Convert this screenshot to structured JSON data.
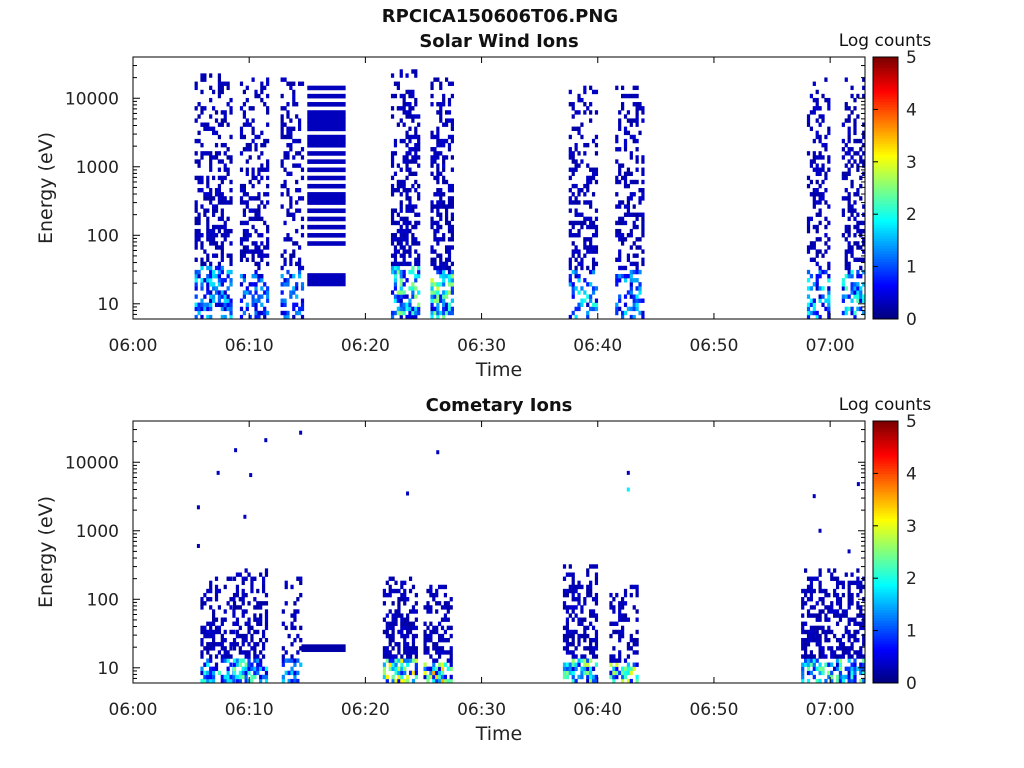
{
  "figure_title": "RPCICA150606T06.PNG",
  "colors": {
    "low": "#00008f",
    "mid": "#00c8ff",
    "high": "#ffea00",
    "max": "#800000"
  },
  "chart_data": [
    {
      "type": "heatmap",
      "title": "Solar Wind Ions",
      "xlabel": "Time",
      "ylabel": "Energy (eV)",
      "x_ticks": [
        "06:00",
        "06:10",
        "06:20",
        "06:30",
        "06:40",
        "06:50",
        "07:00"
      ],
      "x_range_minutes": [
        0,
        63
      ],
      "y_ticks": [
        "10",
        "100",
        "1000",
        "10000"
      ],
      "y_scale": "log",
      "y_range_eV": [
        6,
        40000
      ],
      "colorbar": {
        "label": "Log counts",
        "ticks": [
          "0",
          "1",
          "2",
          "3",
          "4",
          "5"
        ],
        "range": [
          0,
          5
        ]
      },
      "bursts": [
        {
          "t_start": 5.3,
          "t_end": 8.5,
          "e_min": 6,
          "e_max": 25000,
          "intensity": 0.7,
          "peak": 1.6
        },
        {
          "t_start": 9.2,
          "t_end": 11.7,
          "e_min": 6,
          "e_max": 20000,
          "intensity": 0.6,
          "peak": 1.2
        },
        {
          "t_start": 12.7,
          "t_end": 14.5,
          "e_min": 6,
          "e_max": 20000,
          "intensity": 0.6,
          "peak": 1.3
        },
        {
          "t_start": 22.2,
          "t_end": 24.5,
          "e_min": 6,
          "e_max": 25000,
          "intensity": 0.8,
          "peak": 2.3
        },
        {
          "t_start": 25.6,
          "t_end": 27.6,
          "e_min": 6,
          "e_max": 18000,
          "intensity": 0.8,
          "peak": 2.6
        },
        {
          "t_start": 37.5,
          "t_end": 40.0,
          "e_min": 6,
          "e_max": 15000,
          "intensity": 0.6,
          "peak": 1.8
        },
        {
          "t_start": 41.5,
          "t_end": 43.8,
          "e_min": 6,
          "e_max": 15000,
          "intensity": 0.6,
          "peak": 1.5
        },
        {
          "t_start": 58.0,
          "t_end": 60.0,
          "e_min": 6,
          "e_max": 18000,
          "intensity": 0.6,
          "peak": 1.7
        },
        {
          "t_start": 61.0,
          "t_end": 63.0,
          "e_min": 6,
          "e_max": 18000,
          "intensity": 0.6,
          "peak": 2.0
        }
      ],
      "bands": [
        {
          "t_start": 15.0,
          "t_end": 18.3,
          "e_min": 70,
          "e_max": 14000,
          "value": 0.3
        },
        {
          "t_start": 15.0,
          "t_end": 18.3,
          "e_min": 18,
          "e_max": 28,
          "value": 0.3
        }
      ]
    },
    {
      "type": "heatmap",
      "title": "Cometary Ions",
      "xlabel": "Time",
      "ylabel": "Energy (eV)",
      "x_ticks": [
        "06:00",
        "06:10",
        "06:20",
        "06:30",
        "06:40",
        "06:50",
        "07:00"
      ],
      "x_range_minutes": [
        0,
        63
      ],
      "y_ticks": [
        "10",
        "100",
        "1000",
        "10000"
      ],
      "y_scale": "log",
      "y_range_eV": [
        6,
        40000
      ],
      "colorbar": {
        "label": "Log counts",
        "ticks": [
          "0",
          "1",
          "2",
          "3",
          "4",
          "5"
        ],
        "range": [
          0,
          5
        ]
      },
      "bursts": [
        {
          "t_start": 5.8,
          "t_end": 8.6,
          "e_min": 6,
          "e_max": 200,
          "intensity": 0.75,
          "peak": 1.9
        },
        {
          "t_start": 8.6,
          "t_end": 11.6,
          "e_min": 6,
          "e_max": 250,
          "intensity": 0.85,
          "peak": 2.2
        },
        {
          "t_start": 12.8,
          "t_end": 14.5,
          "e_min": 6,
          "e_max": 200,
          "intensity": 0.6,
          "peak": 1.4
        },
        {
          "t_start": 21.5,
          "t_end": 24.5,
          "e_min": 6,
          "e_max": 200,
          "intensity": 0.9,
          "peak": 3.0
        },
        {
          "t_start": 25.0,
          "t_end": 27.5,
          "e_min": 6,
          "e_max": 150,
          "intensity": 0.9,
          "peak": 3.3
        },
        {
          "t_start": 37.0,
          "t_end": 39.8,
          "e_min": 6,
          "e_max": 300,
          "intensity": 0.85,
          "peak": 2.6
        },
        {
          "t_start": 41.0,
          "t_end": 43.5,
          "e_min": 6,
          "e_max": 150,
          "intensity": 0.7,
          "peak": 2.8
        },
        {
          "t_start": 57.5,
          "t_end": 60.0,
          "e_min": 6,
          "e_max": 250,
          "intensity": 0.85,
          "peak": 2.3
        },
        {
          "t_start": 60.0,
          "t_end": 63.0,
          "e_min": 6,
          "e_max": 250,
          "intensity": 0.85,
          "peak": 2.4
        }
      ],
      "bands": [
        {
          "t_start": 14.5,
          "t_end": 18.3,
          "e_min": 17,
          "e_max": 22,
          "value": 0.2
        }
      ],
      "sparse_points": [
        {
          "t": 5.5,
          "e": 2200,
          "value": 0.3
        },
        {
          "t": 5.5,
          "e": 600,
          "value": 0.3
        },
        {
          "t": 7.2,
          "e": 7000,
          "value": 0.3
        },
        {
          "t": 8.7,
          "e": 15000,
          "value": 0.3
        },
        {
          "t": 9.5,
          "e": 1600,
          "value": 0.3
        },
        {
          "t": 10.0,
          "e": 6500,
          "value": 0.3
        },
        {
          "t": 11.3,
          "e": 21000,
          "value": 0.3
        },
        {
          "t": 14.3,
          "e": 27000,
          "value": 0.3
        },
        {
          "t": 26.1,
          "e": 14000,
          "value": 0.3
        },
        {
          "t": 23.5,
          "e": 3500,
          "value": 0.3
        },
        {
          "t": 42.5,
          "e": 7000,
          "value": 0.3
        },
        {
          "t": 42.5,
          "e": 4000,
          "value": 1.8
        },
        {
          "t": 58.5,
          "e": 3200,
          "value": 0.3
        },
        {
          "t": 62.3,
          "e": 4800,
          "value": 0.3
        },
        {
          "t": 59.0,
          "e": 1000,
          "value": 0.3
        },
        {
          "t": 61.5,
          "e": 500,
          "value": 0.3
        }
      ]
    }
  ]
}
